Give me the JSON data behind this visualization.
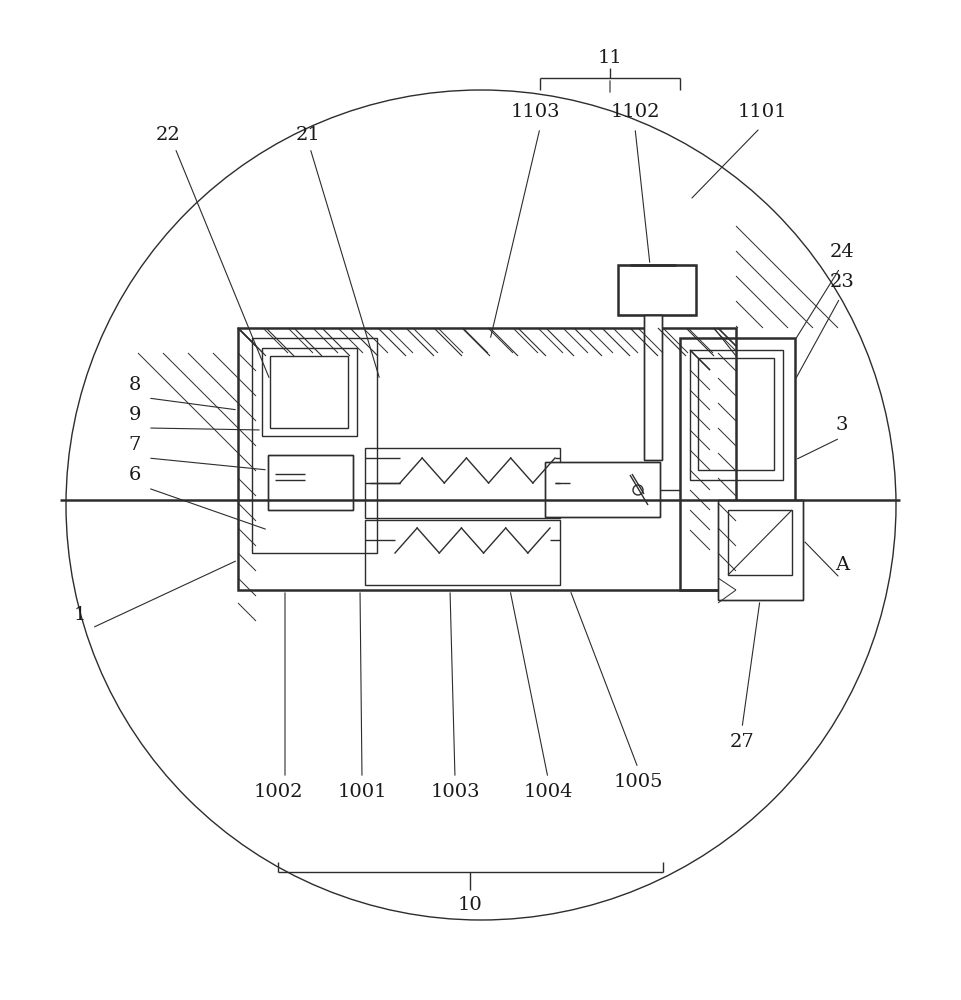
{
  "bg_color": "#ffffff",
  "line_color": "#2d2d2d",
  "label_color": "#1a1a1a",
  "figsize": [
    9.62,
    10.0
  ],
  "dpi": 100
}
